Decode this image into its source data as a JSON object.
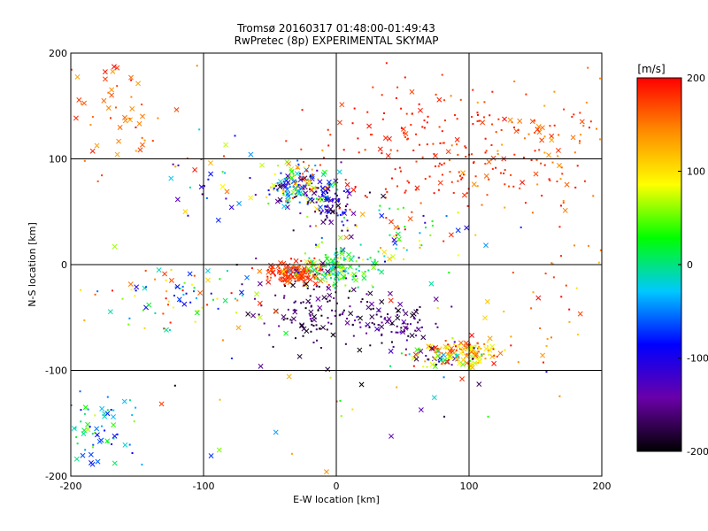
{
  "chart_data": {
    "type": "scatter",
    "title": "Tromsø 20160317 01:48:00-01:49:43",
    "subtitle": "RwPretec (8p) EXPERIMENTAL SKYMAP",
    "xlabel": "E-W location [km]",
    "ylabel": "N-S location [km]",
    "xlim": [
      -200,
      200
    ],
    "ylim": [
      -200,
      200
    ],
    "xticks": [
      -200,
      -100,
      0,
      100,
      200
    ],
    "yticks": [
      -200,
      -100,
      0,
      100,
      200
    ],
    "grid": true,
    "colorbar": {
      "label": "[m/s]",
      "min": -200,
      "max": 200,
      "ticks": [
        200,
        100,
        0,
        -100,
        -200
      ],
      "colors": [
        "#000000",
        "#6a00a8",
        "#0000ff",
        "#00c8ff",
        "#00ff00",
        "#ffff00",
        "#ff8c00",
        "#ff0000"
      ]
    },
    "marker_types": [
      "dot",
      "x"
    ],
    "clusters": [
      {
        "cx": -30,
        "cy": 75,
        "sx": 14,
        "sy": 10,
        "n": 160,
        "vmin": -200,
        "vmax": 200,
        "x_frac": 0.35
      },
      {
        "cx": -5,
        "cy": 58,
        "sx": 8,
        "sy": 8,
        "n": 70,
        "vmin": -200,
        "vmax": -60,
        "x_frac": 0.3
      },
      {
        "cx": -30,
        "cy": -8,
        "sx": 12,
        "sy": 5,
        "n": 170,
        "vmin": 150,
        "vmax": 200,
        "x_frac": 0.35
      },
      {
        "cx": 0,
        "cy": -3,
        "sx": 14,
        "sy": 8,
        "n": 140,
        "vmin": -30,
        "vmax": 90,
        "x_frac": 0.35
      },
      {
        "cx": -15,
        "cy": -45,
        "sx": 22,
        "sy": 18,
        "n": 130,
        "vmin": -200,
        "vmax": -140,
        "x_frac": 0.3
      },
      {
        "cx": 45,
        "cy": -55,
        "sx": 16,
        "sy": 10,
        "n": 80,
        "vmin": -200,
        "vmax": -120,
        "x_frac": 0.3
      },
      {
        "cx": 100,
        "cy": -83,
        "sx": 12,
        "sy": 7,
        "n": 110,
        "vmin": 60,
        "vmax": 200,
        "x_frac": 0.4
      },
      {
        "cx": 80,
        "cy": -88,
        "sx": 12,
        "sy": 5,
        "n": 60,
        "vmin": -200,
        "vmax": 200,
        "x_frac": 0.4
      },
      {
        "cx": 70,
        "cy": 110,
        "sx": 50,
        "sy": 30,
        "n": 190,
        "vmin": 170,
        "vmax": 200,
        "x_frac": 0.2
      },
      {
        "cx": 150,
        "cy": 110,
        "sx": 35,
        "sy": 30,
        "n": 90,
        "vmin": 130,
        "vmax": 200,
        "x_frac": 0.25
      },
      {
        "cx": -120,
        "cy": -30,
        "sx": 35,
        "sy": 15,
        "n": 90,
        "vmin": -120,
        "vmax": 200,
        "x_frac": 0.3
      },
      {
        "cx": -180,
        "cy": -160,
        "sx": 14,
        "sy": 22,
        "n": 70,
        "vmin": -100,
        "vmax": 80,
        "x_frac": 0.4
      },
      {
        "cx": -160,
        "cy": 150,
        "sx": 22,
        "sy": 28,
        "n": 55,
        "vmin": 130,
        "vmax": 200,
        "x_frac": 0.5
      },
      {
        "cx": -100,
        "cy": 80,
        "sx": 15,
        "sy": 20,
        "n": 30,
        "vmin": -200,
        "vmax": 200,
        "x_frac": 0.6
      },
      {
        "cx": 40,
        "cy": 30,
        "sx": 40,
        "sy": 25,
        "n": 90,
        "vmin": -200,
        "vmax": 200,
        "x_frac": 0.3
      },
      {
        "cx": 0,
        "cy": -110,
        "sx": 90,
        "sy": 40,
        "n": 40,
        "vmin": -200,
        "vmax": 200,
        "x_frac": 0.4
      },
      {
        "cx": 160,
        "cy": -40,
        "sx": 30,
        "sy": 40,
        "n": 40,
        "vmin": 100,
        "vmax": 200,
        "x_frac": 0.3
      }
    ]
  }
}
